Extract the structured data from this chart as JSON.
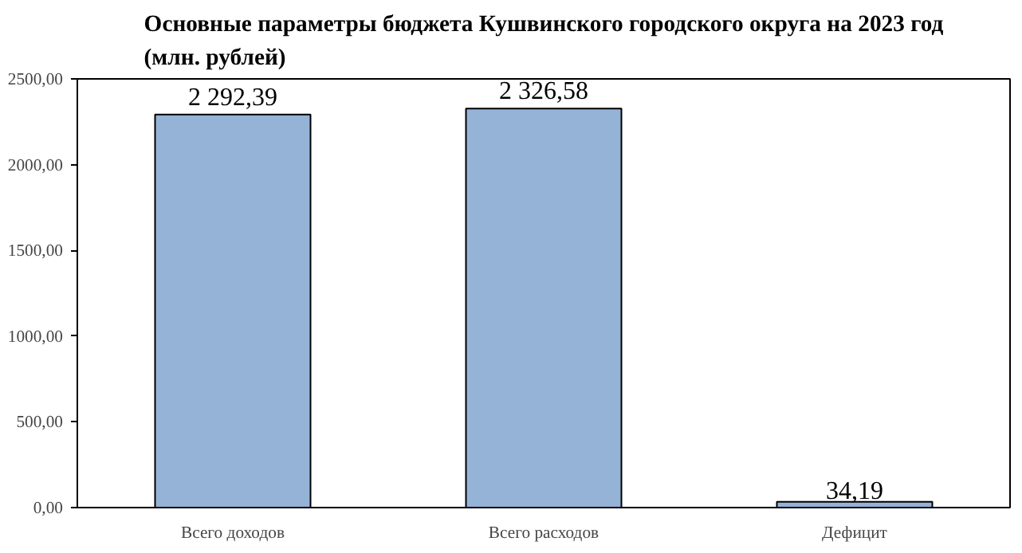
{
  "chart_data": {
    "type": "bar",
    "title": "Основные параметры бюджета Кушвинского городского округа на 2023 год\n(млн. рублей)",
    "categories": [
      "Всего доходов",
      "Всего расходов",
      "Дефицит"
    ],
    "values": [
      2292.39,
      2326.58,
      34.19
    ],
    "value_labels": [
      "2 292,39",
      "2 326,58",
      "34,19"
    ],
    "color": "#95b3d7",
    "ylim": [
      0,
      2500
    ],
    "yticks": [
      {
        "value": 0,
        "label": "0,00"
      },
      {
        "value": 500,
        "label": "500,00"
      },
      {
        "value": 1000,
        "label": "1000,00"
      },
      {
        "value": 1500,
        "label": "1500,00"
      },
      {
        "value": 2000,
        "label": "2000,00"
      },
      {
        "value": 2500,
        "label": "2500,00"
      }
    ],
    "grid": false
  }
}
